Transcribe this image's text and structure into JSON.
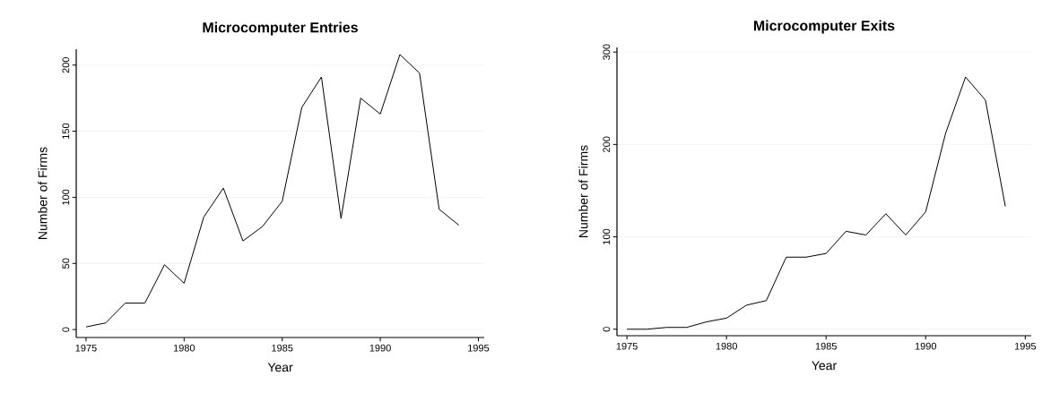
{
  "chart_data": [
    {
      "type": "line",
      "title": "Microcomputer Entries",
      "xlabel": "Year",
      "ylabel": "Number of Firms",
      "color": "#000000",
      "x": [
        1975,
        1976,
        1977,
        1978,
        1979,
        1980,
        1981,
        1982,
        1983,
        1984,
        1985,
        1986,
        1987,
        1988,
        1989,
        1990,
        1991,
        1992,
        1993,
        1994
      ],
      "values": [
        2,
        5,
        20,
        20,
        49,
        35,
        85,
        107,
        67,
        78,
        97,
        168,
        191,
        84,
        175,
        163,
        208,
        194,
        91,
        79
      ],
      "xlim": [
        1974.5,
        1995.3
      ],
      "ylim": [
        -6,
        212
      ],
      "xticks": [
        1975,
        1980,
        1985,
        1990,
        1995
      ],
      "yticks": [
        0,
        50,
        100,
        150,
        200
      ],
      "grid": "y"
    },
    {
      "type": "line",
      "title": "Microcomputer Exits",
      "xlabel": "Year",
      "ylabel": "Number of Firms",
      "color": "#000000",
      "x": [
        1975,
        1976,
        1977,
        1978,
        1979,
        1980,
        1981,
        1982,
        1983,
        1984,
        1985,
        1986,
        1987,
        1988,
        1989,
        1990,
        1991,
        1992,
        1993,
        1994
      ],
      "values": [
        0,
        0,
        2,
        2,
        8,
        12,
        26,
        31,
        78,
        78,
        82,
        106,
        102,
        125,
        102,
        127,
        212,
        273,
        248,
        133
      ],
      "xlim": [
        1974.5,
        1995.3
      ],
      "ylim": [
        -7,
        305
      ],
      "xticks": [
        1975,
        1980,
        1985,
        1990,
        1995
      ],
      "yticks": [
        0,
        100,
        200,
        300
      ],
      "grid": "y"
    }
  ]
}
